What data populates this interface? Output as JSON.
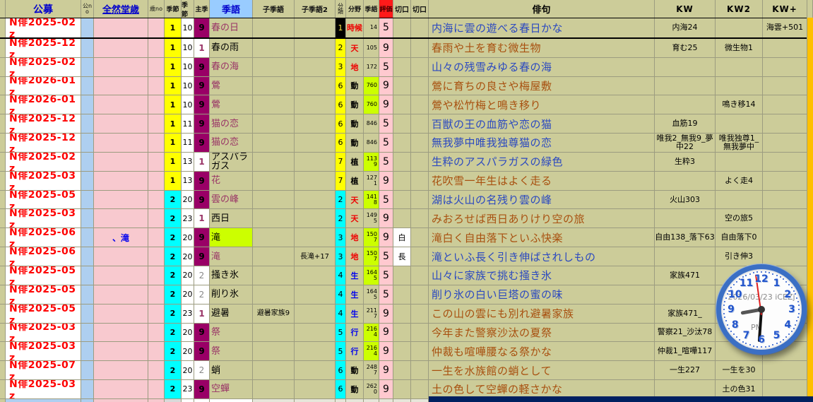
{
  "header": {
    "cols": [
      "",
      "公募",
      "公no",
      "全然堂歳",
      "歳no",
      "季節",
      "季節",
      "主季",
      "季語",
      "子季語",
      "子季語2",
      "分類",
      "分野",
      "季語",
      "評価",
      "切口",
      "切口",
      "俳句",
      "KW",
      "KW2",
      "KW+"
    ]
  },
  "maps": {
    "bunya_color": {
      "時候": "red",
      "天": "red",
      "地": "red",
      "動": "black",
      "植": "black",
      "生": "blue",
      "行": "blue"
    }
  },
  "colors": {
    "cell_olive": "#CCCC99",
    "strip_yellow": "#FFC000",
    "strip_navy": "#002060",
    "highlight_chartreuse": "#CCFF00",
    "shuki_magenta": "#990066",
    "hyoka_pink": "#FFC9CF",
    "haiku_blue": "#2B49C0",
    "haiku_brown": "#A8500F"
  },
  "rows": [
    {
      "koubo": "N俳2025-02z",
      "zenzen": "",
      "kisetsu": "1",
      "kisetsu2": "10",
      "shuki": "9",
      "kigo": "春の日",
      "kokigo": "",
      "kokigo2": "",
      "bunrui": "1",
      "bunya": "時候",
      "kigono": "14",
      "kigo_no_green": false,
      "hyoka": "5",
      "kiri1": "",
      "kiri2": "",
      "haiku": "内海に雲の遊べる春日かな",
      "haiku_color": "blue",
      "kw": "内海24",
      "kw2": "",
      "kwp": "海雲+501",
      "cursor": true,
      "kigo_highlight": false
    },
    {
      "koubo": "N俳2025-12z",
      "zenzen": "",
      "kisetsu": "1",
      "kisetsu2": "10",
      "shuki": "1",
      "kigo": "春の雨",
      "kokigo": "",
      "kokigo2": "",
      "bunrui": "2",
      "bunya": "天",
      "kigono": "105",
      "kigo_no_green": false,
      "hyoka": "9",
      "kiri1": "",
      "kiri2": "",
      "haiku": "春雨や土を育む微生物",
      "haiku_color": "brown",
      "kw": "育む25",
      "kw2": "微生物1",
      "kwp": "",
      "cursor": false,
      "kigo_highlight": false
    },
    {
      "koubo": "N俳2025-02z",
      "zenzen": "",
      "kisetsu": "1",
      "kisetsu2": "10",
      "shuki": "9",
      "kigo": "春の海",
      "kokigo": "",
      "kokigo2": "",
      "bunrui": "3",
      "bunya": "地",
      "kigono": "172",
      "kigo_no_green": false,
      "hyoka": "5",
      "kiri1": "",
      "kiri2": "",
      "haiku": "山々の残雪みゆる春の海",
      "haiku_color": "blue",
      "kw": "",
      "kw2": "",
      "kwp": "",
      "cursor": false,
      "kigo_highlight": false
    },
    {
      "koubo": "N俳2026-01z",
      "zenzen": "",
      "kisetsu": "1",
      "kisetsu2": "10",
      "shuki": "9",
      "kigo": "鶯",
      "kokigo": "",
      "kokigo2": "",
      "bunrui": "6",
      "bunya": "動",
      "kigono": "760",
      "kigo_no_green": true,
      "hyoka": "9",
      "kiri1": "",
      "kiri2": "",
      "haiku": "鶯に育ちの良さや梅屋敷",
      "haiku_color": "brown",
      "kw": "",
      "kw2": "",
      "kwp": "",
      "cursor": false,
      "kigo_highlight": false
    },
    {
      "koubo": "N俳2026-01z",
      "zenzen": "",
      "kisetsu": "1",
      "kisetsu2": "10",
      "shuki": "9",
      "kigo": "鶯",
      "kokigo": "",
      "kokigo2": "",
      "bunrui": "6",
      "bunya": "動",
      "kigono": "760",
      "kigo_no_green": true,
      "hyoka": "9",
      "kiri1": "",
      "kiri2": "",
      "haiku": "鶯や松竹梅と鳴き移り",
      "haiku_color": "brown",
      "kw": "",
      "kw2": "鳴き移14",
      "kwp": "",
      "cursor": false,
      "kigo_highlight": false
    },
    {
      "koubo": "N俳2025-12z",
      "zenzen": "",
      "kisetsu": "1",
      "kisetsu2": "11",
      "shuki": "9",
      "kigo": "猫の恋",
      "kokigo": "",
      "kokigo2": "",
      "bunrui": "6",
      "bunya": "動",
      "kigono": "846",
      "kigo_no_green": false,
      "hyoka": "5",
      "kiri1": "",
      "kiri2": "",
      "haiku": "百獣の王の血筋や恋の猫",
      "haiku_color": "blue",
      "kw": "血筋19",
      "kw2": "",
      "kwp": "",
      "cursor": false,
      "kigo_highlight": false
    },
    {
      "koubo": "N俳2025-12z",
      "zenzen": "",
      "kisetsu": "1",
      "kisetsu2": "11",
      "shuki": "9",
      "kigo": "猫の恋",
      "kokigo": "",
      "kokigo2": "",
      "bunrui": "6",
      "bunya": "動",
      "kigono": "846",
      "kigo_no_green": false,
      "hyoka": "5",
      "kiri1": "",
      "kiri2": "",
      "haiku": "無我夢中唯我独尊猫の恋",
      "haiku_color": "blue",
      "kw": "唯我2_無我9_夢中22",
      "kw2": "唯我独尊1_無我夢中",
      "kwp": "",
      "cursor": false,
      "kigo_highlight": false
    },
    {
      "koubo": "N俳2025-02z",
      "zenzen": "",
      "kisetsu": "1",
      "kisetsu2": "13",
      "shuki": "1",
      "kigo": "アスパラガス",
      "kokigo": "",
      "kokigo2": "",
      "bunrui": "7",
      "bunya": "植",
      "kigono": "1139",
      "kigo_no_green": true,
      "hyoka": "5",
      "kiri1": "",
      "kiri2": "",
      "haiku": "生粋のアスパラガスの緑色",
      "haiku_color": "blue",
      "kw": "生粋3",
      "kw2": "",
      "kwp": "",
      "cursor": false,
      "kigo_highlight": false
    },
    {
      "koubo": "N俳2025-03z",
      "zenzen": "",
      "kisetsu": "1",
      "kisetsu2": "13",
      "shuki": "9",
      "kigo": "花",
      "kokigo": "",
      "kokigo2": "",
      "bunrui": "7",
      "bunya": "植",
      "kigono": "1271",
      "kigo_no_green": false,
      "hyoka": "9",
      "kiri1": "",
      "kiri2": "",
      "haiku": "花吹雪一年生はよく走る",
      "haiku_color": "brown",
      "kw": "",
      "kw2": "よく走4",
      "kwp": "",
      "cursor": false,
      "kigo_highlight": false
    },
    {
      "koubo": "N俳2025-05z",
      "zenzen": "",
      "kisetsu": "2",
      "kisetsu2": "20",
      "shuki": "9",
      "kigo": "雲の峰",
      "kokigo": "",
      "kokigo2": "",
      "bunrui": "2",
      "bunya": "天",
      "kigono": "1418",
      "kigo_no_green": true,
      "hyoka": "5",
      "kiri1": "",
      "kiri2": "",
      "haiku": "湖は火山の名残り雲の峰",
      "haiku_color": "blue",
      "kw": "火山303",
      "kw2": "",
      "kwp": "",
      "cursor": false,
      "kigo_highlight": false
    },
    {
      "koubo": "N俳2025-03z",
      "zenzen": "",
      "kisetsu": "2",
      "kisetsu2": "23",
      "shuki": "1",
      "kigo": "西日",
      "kokigo": "",
      "kokigo2": "",
      "bunrui": "2",
      "bunya": "天",
      "kigono": "1495",
      "kigo_no_green": false,
      "hyoka": "9",
      "kiri1": "",
      "kiri2": "",
      "haiku": "みおろせば西日ありけり空の旅",
      "haiku_color": "brown",
      "kw": "",
      "kw2": "空の旅5",
      "kwp": "",
      "cursor": false,
      "kigo_highlight": false
    },
    {
      "koubo": "N俳2025-06z",
      "zenzen": "、滝",
      "kisetsu": "2",
      "kisetsu2": "20",
      "shuki": "9",
      "kigo": "滝",
      "kokigo": "",
      "kokigo2": "",
      "bunrui": "3",
      "bunya": "地",
      "kigono": "1507",
      "kigo_no_green": true,
      "hyoka": "9",
      "kiri1": "白",
      "kiri2": "",
      "haiku": "滝白く自由落下といふ快楽",
      "haiku_color": "brown",
      "kw": "自由138_落下63",
      "kw2": "自由落下0",
      "kwp": "",
      "cursor": false,
      "kigo_highlight": true
    },
    {
      "koubo": "N俳2025-06z",
      "zenzen": "",
      "kisetsu": "2",
      "kisetsu2": "20",
      "shuki": "9",
      "kigo": "滝",
      "kokigo": "",
      "kokigo2": "長滝+17",
      "bunrui": "3",
      "bunya": "地",
      "kigono": "1507",
      "kigo_no_green": true,
      "hyoka": "5",
      "kiri1": "長",
      "kiri2": "",
      "haiku": "滝といふ長く引き伸ばされしもの",
      "haiku_color": "blue",
      "kw": "",
      "kw2": "引き伸3",
      "kwp": "",
      "cursor": false,
      "kigo_highlight": false
    },
    {
      "koubo": "N俳2025-05z",
      "zenzen": "",
      "kisetsu": "2",
      "kisetsu2": "20",
      "shuki": "2",
      "kigo": "掻き氷",
      "kokigo": "",
      "kokigo2": "",
      "bunrui": "4",
      "bunya": "生",
      "kigono": "1645",
      "kigo_no_green": true,
      "hyoka": "5",
      "kiri1": "",
      "kiri2": "",
      "haiku": "山々に家族で挑む掻き氷",
      "haiku_color": "blue",
      "kw": "家族471",
      "kw2": "",
      "kwp": "",
      "cursor": false,
      "kigo_highlight": false
    },
    {
      "koubo": "N俳2025-05z",
      "zenzen": "",
      "kisetsu": "2",
      "kisetsu2": "20",
      "shuki": "2",
      "kigo": "削り氷",
      "kokigo": "",
      "kokigo2": "",
      "bunrui": "4",
      "bunya": "生",
      "kigono": "1645",
      "kigo_no_green": false,
      "hyoka": "5",
      "kiri1": "",
      "kiri2": "",
      "haiku": "削り氷の白い巨塔の蜜の味",
      "haiku_color": "blue",
      "kw": "",
      "kw2": "",
      "kwp": "",
      "cursor": false,
      "kigo_highlight": false
    },
    {
      "koubo": "N俳2025-05z",
      "zenzen": "",
      "kisetsu": "2",
      "kisetsu2": "23",
      "shuki": "1",
      "kigo": "避暑",
      "kokigo": "避暑家族9",
      "kokigo2": "",
      "bunrui": "4",
      "bunya": "生",
      "kigono": "2117",
      "kigo_no_green": false,
      "hyoka": "9",
      "kiri1": "",
      "kiri2": "",
      "haiku": "この山の雲にも別れ避暑家族",
      "haiku_color": "brown",
      "kw": "家族471_",
      "kw2": "",
      "kwp": "",
      "cursor": false,
      "kigo_highlight": false
    },
    {
      "koubo": "N俳2025-03z",
      "zenzen": "",
      "kisetsu": "2",
      "kisetsu2": "20",
      "shuki": "9",
      "kigo": "祭",
      "kokigo": "",
      "kokigo2": "",
      "bunrui": "5",
      "bunya": "行",
      "kigono": "2164",
      "kigo_no_green": true,
      "hyoka": "9",
      "kiri1": "",
      "kiri2": "",
      "haiku": "今年また警察沙汰の夏祭",
      "haiku_color": "brown",
      "kw": "警察21_沙汰78",
      "kw2": "警",
      "kwp": "",
      "cursor": false,
      "kigo_highlight": false
    },
    {
      "koubo": "N俳2025-03z",
      "zenzen": "",
      "kisetsu": "2",
      "kisetsu2": "20",
      "shuki": "9",
      "kigo": "祭",
      "kokigo": "",
      "kokigo2": "",
      "bunrui": "5",
      "bunya": "行",
      "kigono": "2164",
      "kigo_no_green": true,
      "hyoka": "9",
      "kiri1": "",
      "kiri2": "",
      "haiku": "仲裁も喧嘩腰なる祭かな",
      "haiku_color": "brown",
      "kw": "仲裁1_喧嘩117",
      "kw2": "",
      "kwp": "",
      "cursor": false,
      "kigo_highlight": false
    },
    {
      "koubo": "N俳2025-07z",
      "zenzen": "",
      "kisetsu": "2",
      "kisetsu2": "20",
      "shuki": "2",
      "kigo": "蛸",
      "kokigo": "",
      "kokigo2": "",
      "bunrui": "6",
      "bunya": "動",
      "kigono": "2487",
      "kigo_no_green": false,
      "hyoka": "9",
      "kiri1": "",
      "kiri2": "",
      "haiku": "一生を水族館の蛸として",
      "haiku_color": "brown",
      "kw": "一生227",
      "kw2": "一生を30",
      "kwp": "",
      "cursor": false,
      "kigo_highlight": false
    },
    {
      "koubo": "N俳2025-03z",
      "zenzen": "",
      "kisetsu": "2",
      "kisetsu2": "23",
      "shuki": "9",
      "kigo": "空蟬",
      "kokigo": "",
      "kokigo2": "",
      "bunrui": "6",
      "bunya": "動",
      "kigono": "2620",
      "kigo_no_green": false,
      "hyoka": "9",
      "kiri1": "",
      "kiri2": "",
      "haiku": "土の色して空蟬の軽さかな",
      "haiku_color": "brown",
      "kw": "",
      "kw2": "土の色31",
      "kwp": "",
      "cursor": false,
      "kigo_highlight": false
    }
  ],
  "clock": {
    "date": "2026/03/23 iCEZj",
    "meridiem": "PM",
    "numerals": [
      "1",
      "2",
      "3",
      "4",
      "5",
      "6",
      "7",
      "8",
      "9",
      "10",
      "11",
      "12"
    ]
  }
}
